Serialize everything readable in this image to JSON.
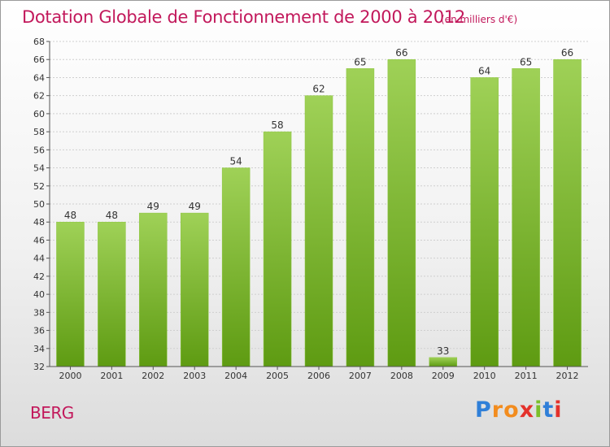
{
  "title": "Dotation Globale de Fonctionnement de 2000 à 2012",
  "subtitle": "(en milliers d'€)",
  "place": "BERG",
  "logo": {
    "text": "Proxiti",
    "letters": [
      "P",
      "r",
      "o",
      "x",
      "i",
      "t",
      "i"
    ]
  },
  "colors": {
    "title": "#c2185b",
    "bar_top": "#9fd157",
    "bar_bottom": "#5e9b12",
    "grid": "#cfcfcf",
    "axis": "#555555"
  },
  "chart_data": {
    "type": "bar",
    "categories": [
      "2000",
      "2001",
      "2002",
      "2003",
      "2004",
      "2005",
      "2006",
      "2007",
      "2008",
      "2009",
      "2010",
      "2011",
      "2012"
    ],
    "values": [
      48,
      48,
      49,
      49,
      54,
      58,
      62,
      65,
      66,
      33,
      64,
      65,
      66
    ],
    "ylim": [
      32,
      68
    ],
    "yticks": [
      32,
      34,
      36,
      38,
      40,
      42,
      44,
      46,
      48,
      50,
      52,
      54,
      56,
      58,
      60,
      62,
      64,
      66,
      68
    ],
    "grid": true,
    "xlabel": "",
    "ylabel": ""
  }
}
